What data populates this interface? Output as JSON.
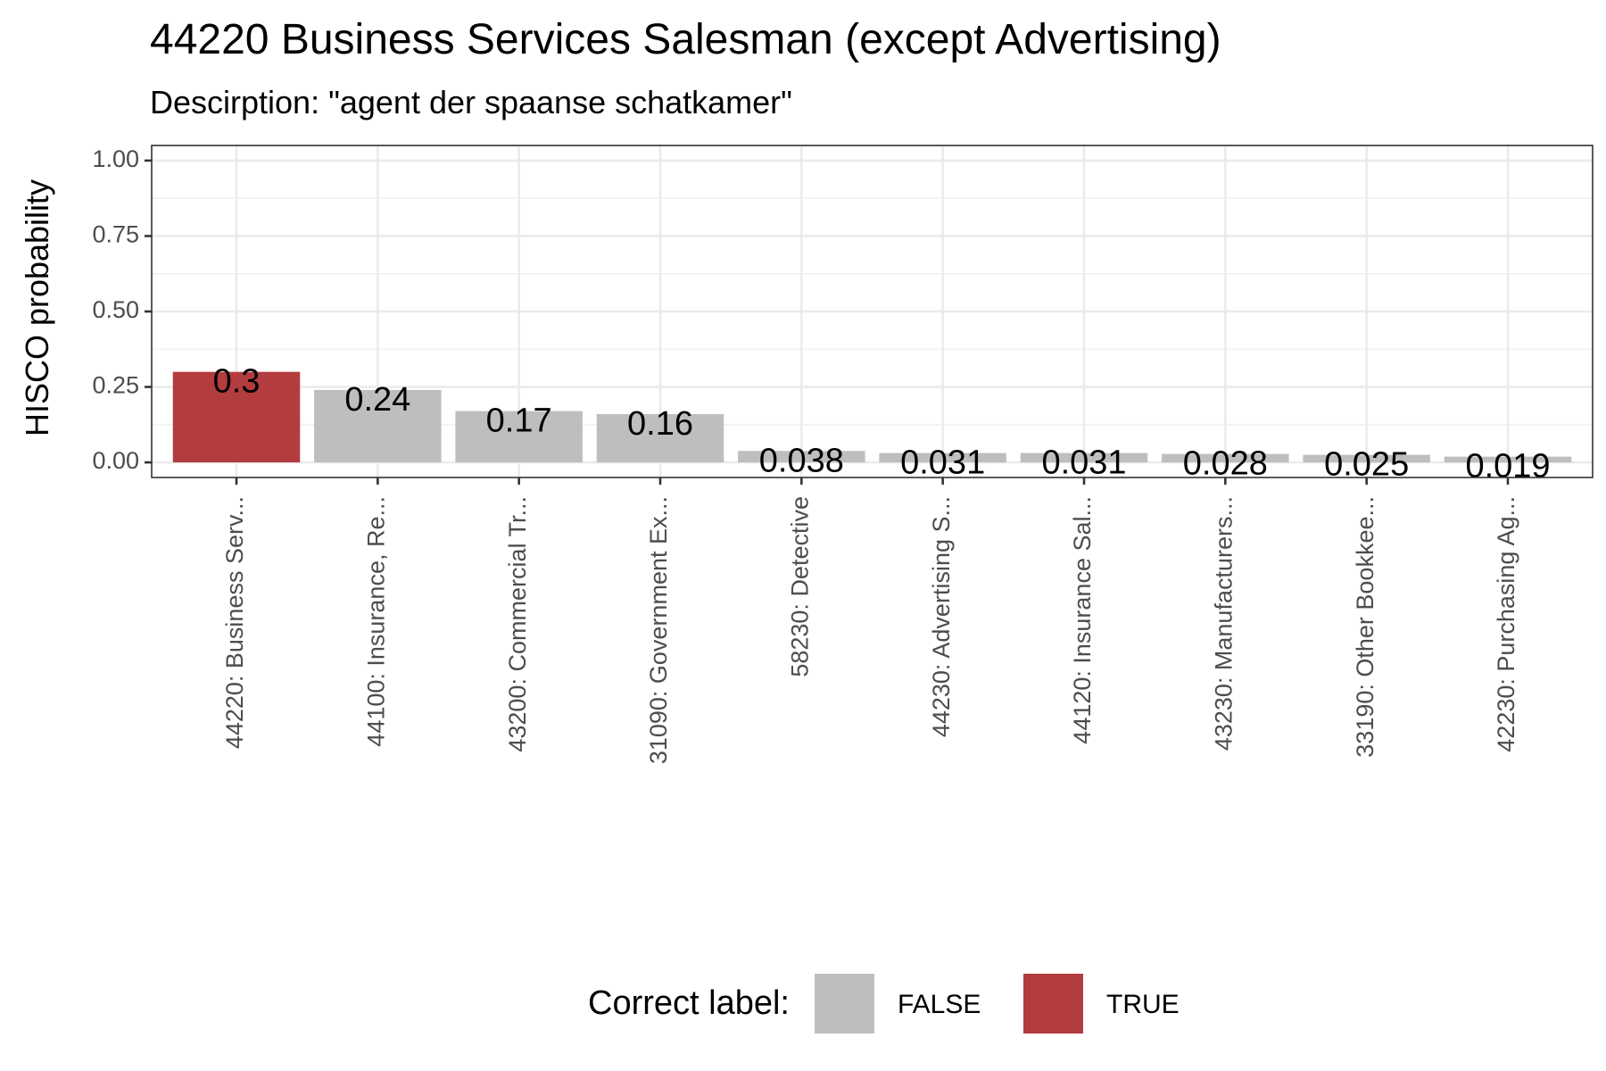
{
  "chart_data": {
    "type": "bar",
    "title": "44220 Business Services Salesman (except Advertising)",
    "subtitle": "Descirption: \"agent der spaanse schatkamer\"",
    "xlabel": "",
    "ylabel": "HISCO probability",
    "ylim": [
      -0.05,
      1.05
    ],
    "yticks": [
      0.0,
      0.25,
      0.5,
      0.75,
      1.0
    ],
    "ytick_labels": [
      "0.00",
      "0.25",
      "0.50",
      "0.75",
      "1.00"
    ],
    "grid": true,
    "categories": [
      "44220: Business Serv...",
      "44100: Insurance, Re...",
      "43200: Commercial Tr...",
      "31090: Government Ex...",
      "58230: Detective",
      "44230: Advertising S...",
      "44120: Insurance Sal...",
      "43230: Manufacturers...",
      "33190: Other Bookkee...",
      "42230: Purchasing Ag..."
    ],
    "values": [
      0.3,
      0.24,
      0.17,
      0.16,
      0.038,
      0.031,
      0.031,
      0.028,
      0.025,
      0.019
    ],
    "data_labels": [
      "0.3",
      "0.24",
      "0.17",
      "0.16",
      "0.038",
      "0.031",
      "0.031",
      "0.028",
      "0.025",
      "0.019"
    ],
    "correct": [
      true,
      false,
      false,
      false,
      false,
      false,
      false,
      false,
      false,
      false
    ],
    "legend": {
      "title": "Correct label:",
      "position": "bottom",
      "entries": [
        {
          "label": "FALSE",
          "color": "#bebebe"
        },
        {
          "label": "TRUE",
          "color": "#b33c3f"
        }
      ]
    },
    "colors": {
      "false": "#bebebe",
      "true": "#b33c3f"
    }
  }
}
